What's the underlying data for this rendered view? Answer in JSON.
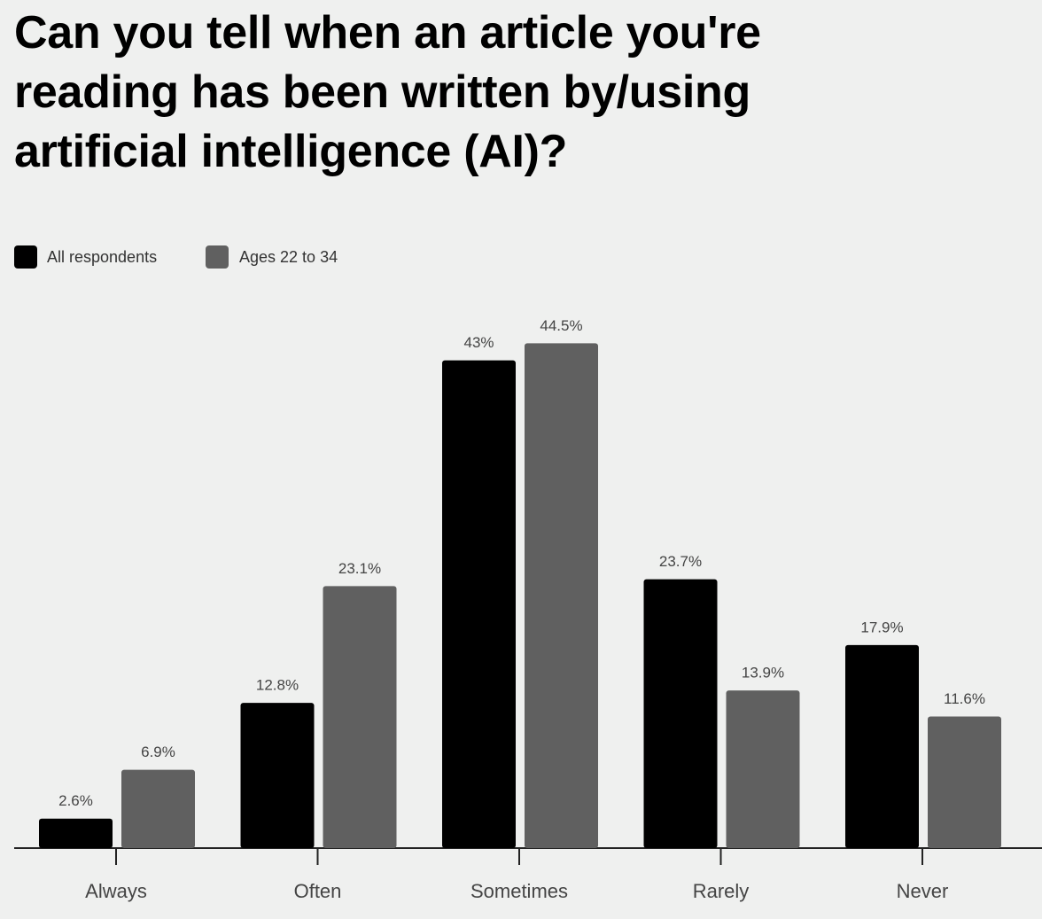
{
  "chart_data": {
    "type": "bar",
    "title": "Can you tell when an article you're reading has been written by/using artificial intelligence (AI)?",
    "categories": [
      "Always",
      "Often",
      "Sometimes",
      "Rarely",
      "Never"
    ],
    "series": [
      {
        "name": "All respondents",
        "color": "#000000",
        "values": [
          2.6,
          12.8,
          43,
          23.7,
          17.9
        ],
        "value_labels": [
          "2.6%",
          "12.8%",
          "43%",
          "23.7%",
          "17.9%"
        ]
      },
      {
        "name": "Ages 22 to 34",
        "color": "#606060",
        "values": [
          6.9,
          23.1,
          44.5,
          13.9,
          11.6
        ],
        "value_labels": [
          "6.9%",
          "23.1%",
          "44.5%",
          "13.9%",
          "11.6%"
        ]
      }
    ]
  }
}
